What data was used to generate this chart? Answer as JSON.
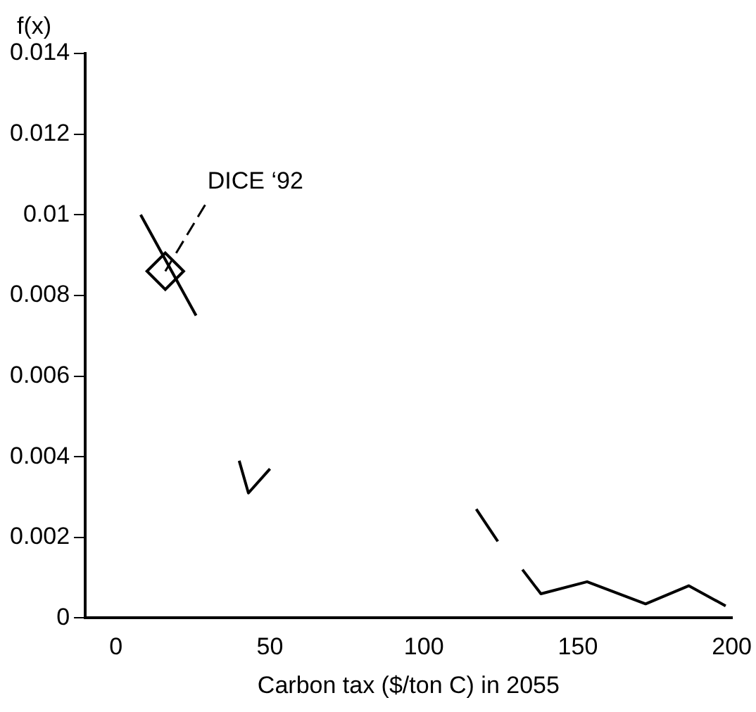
{
  "chart_data": {
    "type": "line",
    "xlabel": "Carbon tax ($/ton C) in 2055",
    "ylabel": "f(x)",
    "xlim": [
      -10,
      200
    ],
    "ylim": [
      0,
      0.014
    ],
    "xticks": [
      0,
      50,
      100,
      150,
      200
    ],
    "yticks": [
      0,
      0.002,
      0.004,
      0.006,
      0.008,
      0.01,
      0.012,
      0.014
    ],
    "grid": false,
    "legend": false,
    "annotations": [
      {
        "text": "DICE ‘92",
        "x": 16,
        "y": 0.0086
      }
    ],
    "series": [
      {
        "type": "line",
        "color": "#000000",
        "marker": "none",
        "line_style": "solid",
        "x": [
          8,
          26,
          30,
          40,
          43,
          50,
          80,
          117,
          124,
          128,
          132,
          138,
          153,
          172,
          186,
          198
        ],
        "values": [
          0.01,
          0.0075,
          null,
          0.0039,
          0.0031,
          0.0037,
          null,
          0.0027,
          0.0019,
          null,
          0.0012,
          0.0006,
          0.0009,
          0.00035,
          0.0008,
          0.0003
        ]
      },
      {
        "type": "scatter",
        "color": "#000000",
        "marker": "diamond",
        "x": [
          16
        ],
        "values": [
          0.0086
        ]
      }
    ]
  }
}
